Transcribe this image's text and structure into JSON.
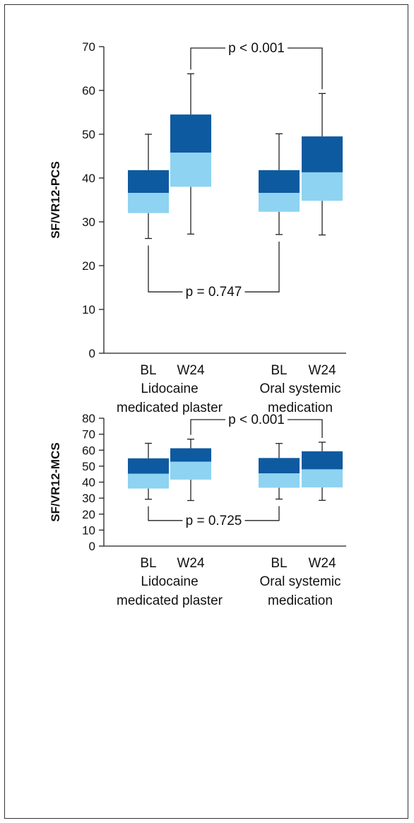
{
  "colors": {
    "upper_box": "#0e5aa0",
    "lower_box": "#8ed3f1",
    "line": "#222222"
  },
  "chart_data": [
    {
      "type": "box",
      "ylabel": "SF/VR12-PCS",
      "ylim": [
        0,
        70
      ],
      "yticks": [
        0,
        10,
        20,
        30,
        40,
        50,
        60,
        70
      ],
      "categories": [
        "BL",
        "W24",
        "BL",
        "W24"
      ],
      "groups": [
        {
          "label_lines": [
            "Lidocaine",
            "medicated plaster"
          ]
        },
        {
          "label_lines": [
            "Oral systemic",
            "medication"
          ]
        }
      ],
      "boxes": [
        {
          "min": 26.2,
          "q1": 32.0,
          "median": 36.6,
          "q3": 41.8,
          "max": 50.0
        },
        {
          "min": 27.2,
          "q1": 38.0,
          "median": 45.8,
          "q3": 54.5,
          "max": 63.8
        },
        {
          "min": 27.1,
          "q1": 32.3,
          "median": 36.6,
          "q3": 41.8,
          "max": 50.1
        },
        {
          "min": 27.0,
          "q1": 34.8,
          "median": 41.3,
          "q3": 49.5,
          "max": 59.3
        }
      ],
      "comparisons": [
        {
          "label": "p < 0.001",
          "from": 1,
          "to": 3,
          "position": "above"
        },
        {
          "label": "p = 0.747",
          "from": 0,
          "to": 2,
          "position": "below"
        }
      ]
    },
    {
      "type": "box",
      "ylabel": "SF/VR12-MCS",
      "ylim": [
        0,
        80
      ],
      "yticks": [
        0,
        10,
        20,
        30,
        40,
        50,
        60,
        70,
        80
      ],
      "categories": [
        "BL",
        "W24",
        "BL",
        "W24"
      ],
      "groups": [
        {
          "label_lines": [
            "Lidocaine",
            "medicated plaster"
          ]
        },
        {
          "label_lines": [
            "Oral systemic",
            "medication"
          ]
        }
      ],
      "boxes": [
        {
          "min": 29.3,
          "q1": 36.0,
          "median": 45.3,
          "q3": 54.9,
          "max": 64.3
        },
        {
          "min": 28.5,
          "q1": 41.6,
          "median": 52.8,
          "q3": 61.2,
          "max": 66.9
        },
        {
          "min": 29.4,
          "q1": 36.5,
          "median": 45.5,
          "q3": 55.1,
          "max": 64.2
        },
        {
          "min": 28.6,
          "q1": 36.7,
          "median": 48.0,
          "q3": 59.3,
          "max": 65.0
        }
      ],
      "comparisons": [
        {
          "label": "p < 0.001",
          "from": 1,
          "to": 3,
          "position": "above"
        },
        {
          "label": "p = 0.725",
          "from": 0,
          "to": 2,
          "position": "below"
        }
      ]
    }
  ]
}
